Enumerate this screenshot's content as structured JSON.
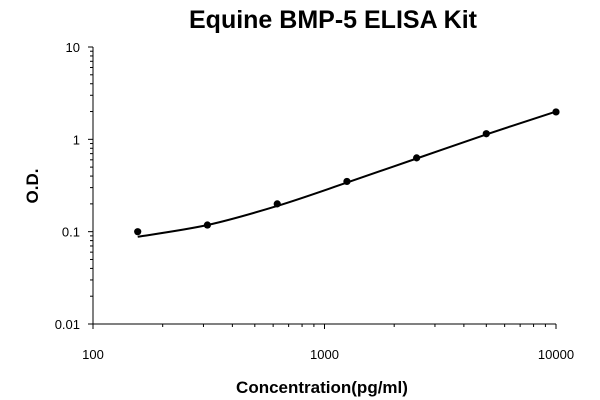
{
  "chart_data": {
    "type": "scatter",
    "title": "Equine BMP-5 ELISA Kit",
    "xlabel": "Concentration(pg/ml)",
    "ylabel": "O.D.",
    "x_scale": "log",
    "y_scale": "log",
    "xlim": [
      100,
      10000
    ],
    "ylim": [
      0.01,
      10
    ],
    "x_ticks": [
      "100",
      "1000",
      "10000"
    ],
    "y_ticks": [
      "0.01",
      "0.1",
      "1",
      "10"
    ],
    "grid": false,
    "legend": "none",
    "series": [
      {
        "points": [
          {
            "x": 156,
            "y": 0.1
          },
          {
            "x": 312,
            "y": 0.118
          },
          {
            "x": 625,
            "y": 0.2
          },
          {
            "x": 1250,
            "y": 0.35
          },
          {
            "x": 2500,
            "y": 0.63
          },
          {
            "x": 5000,
            "y": 1.15
          },
          {
            "x": 10000,
            "y": 1.98
          }
        ],
        "fit_line": [
          {
            "x": 156,
            "y": 0.088
          },
          {
            "x": 312,
            "y": 0.118
          },
          {
            "x": 625,
            "y": 0.19
          },
          {
            "x": 1250,
            "y": 0.34
          },
          {
            "x": 2500,
            "y": 0.62
          },
          {
            "x": 5000,
            "y": 1.13
          },
          {
            "x": 10000,
            "y": 2.0
          }
        ]
      }
    ],
    "colors": {
      "marker": "#000000",
      "line": "#000000",
      "axis": "#000000"
    }
  }
}
